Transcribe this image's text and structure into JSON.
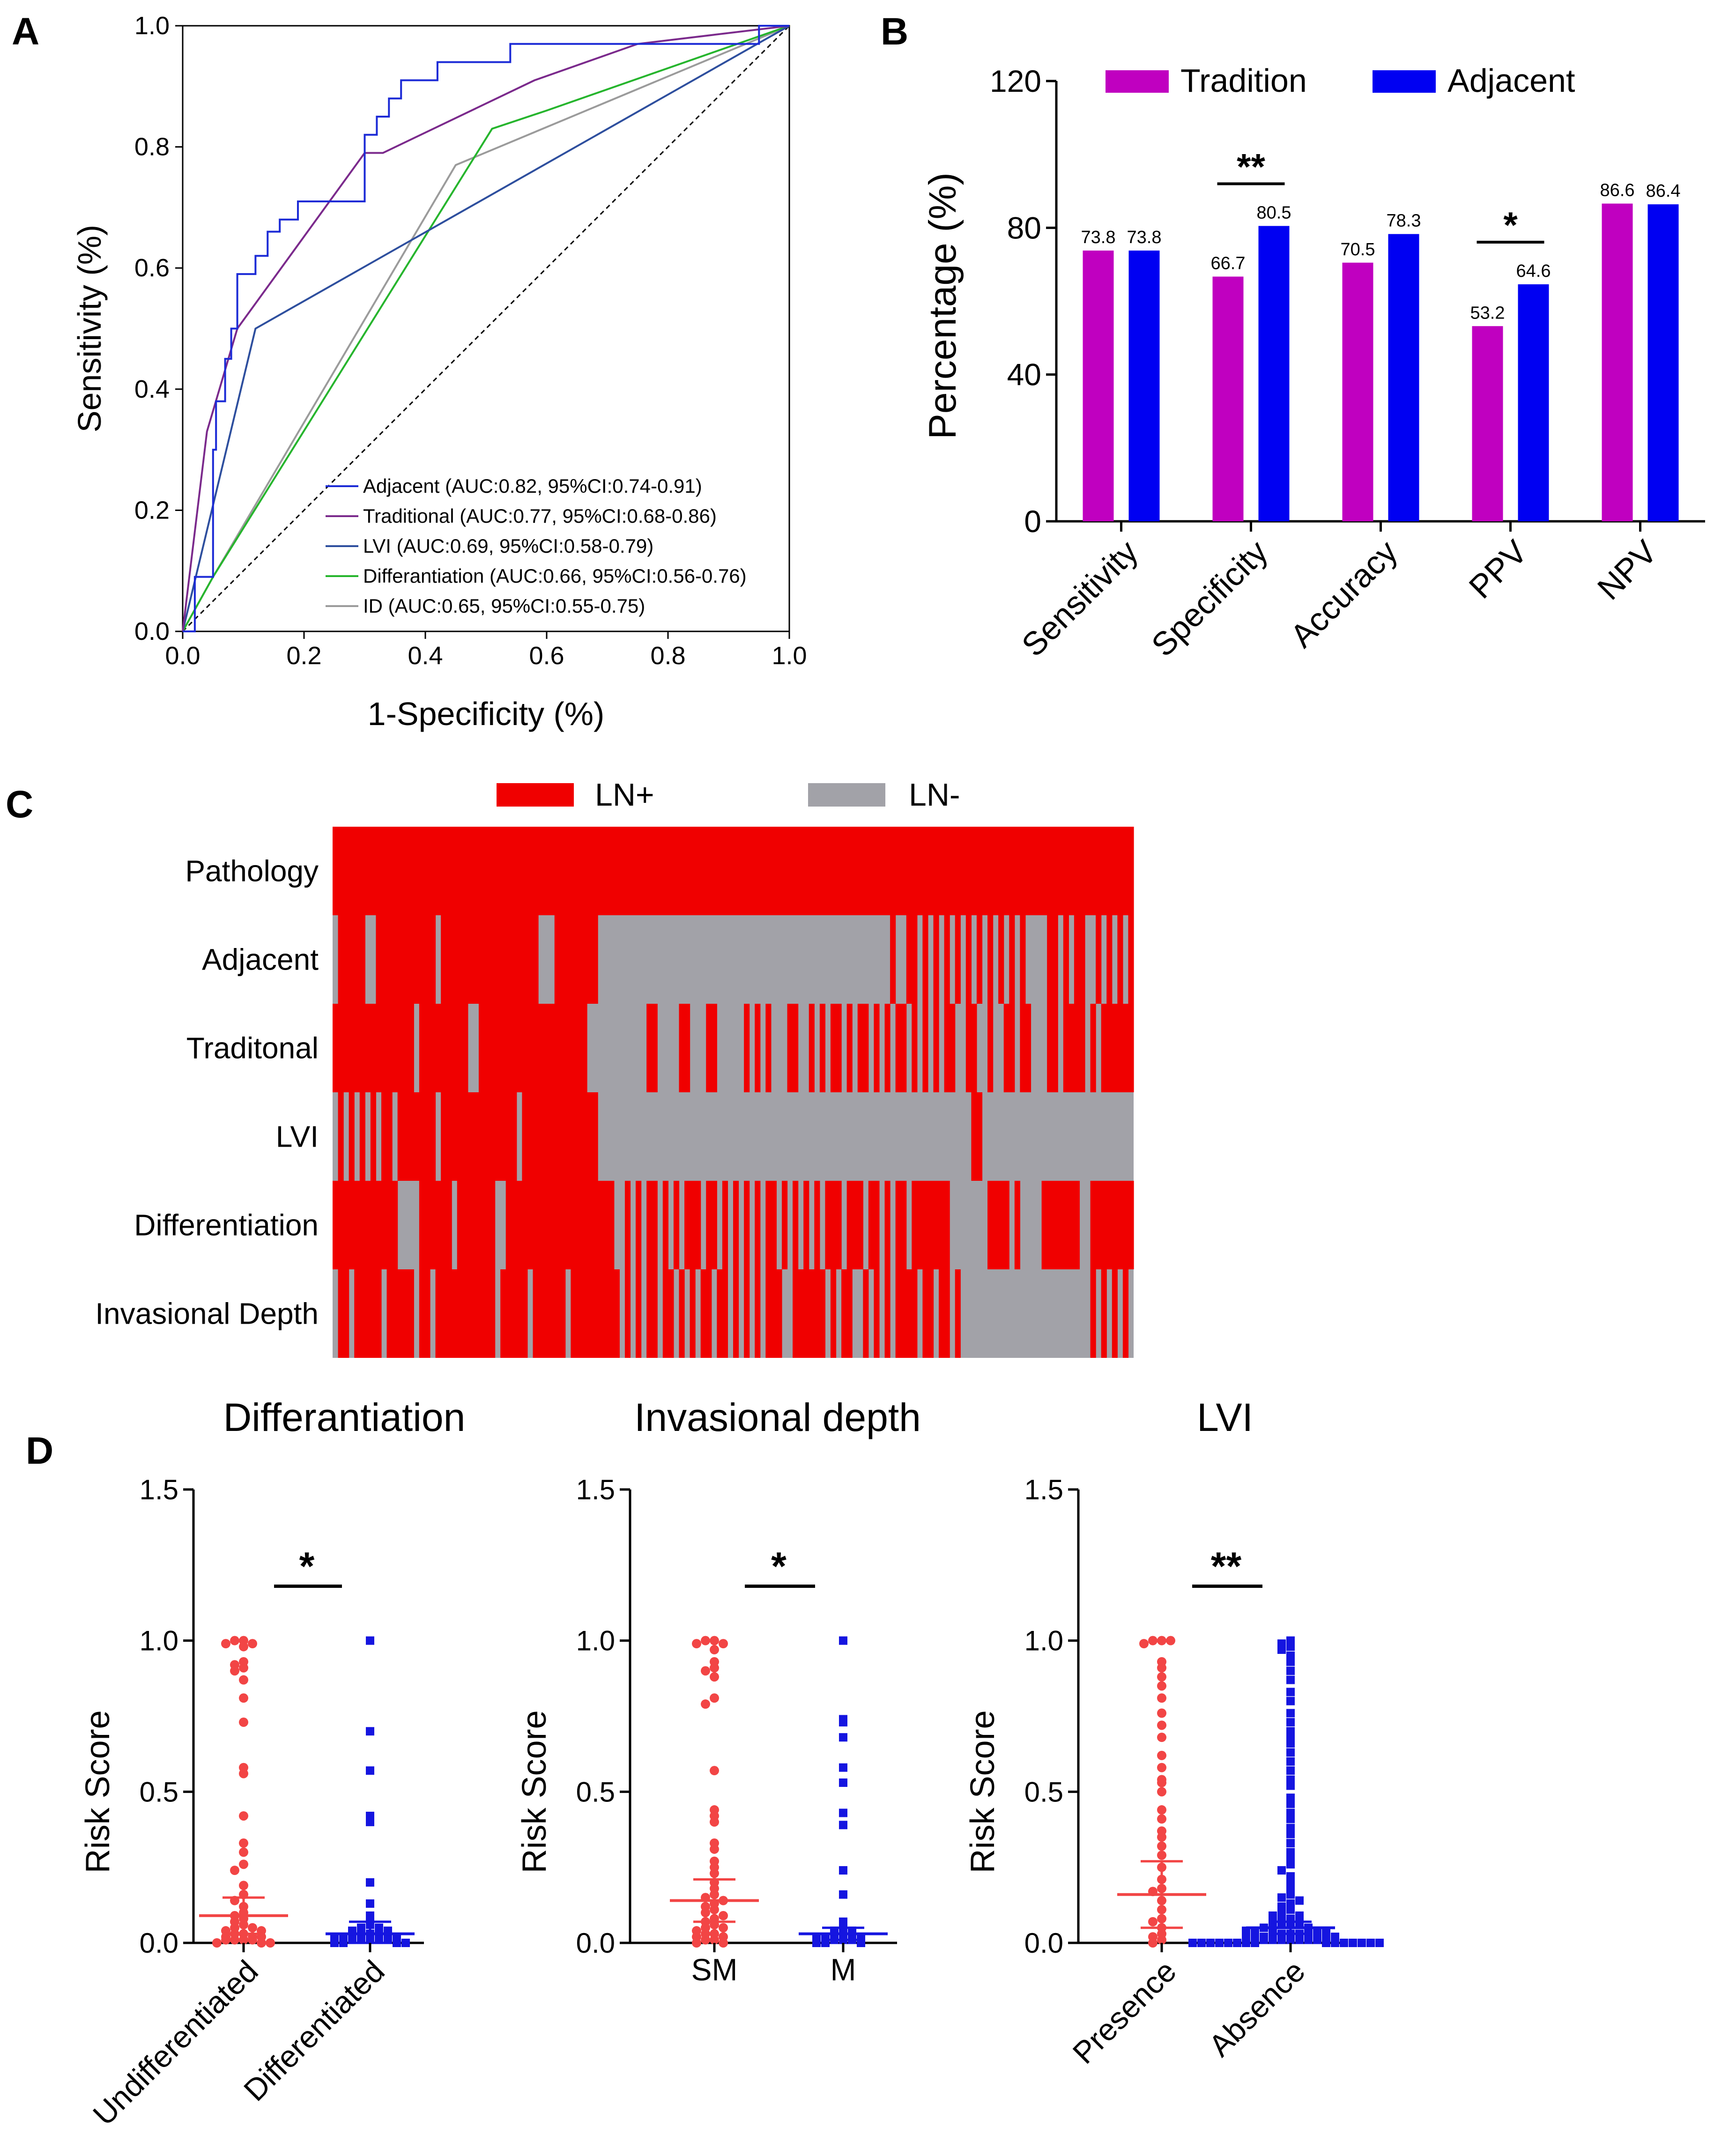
{
  "panels": {
    "a": "A",
    "b": "B",
    "c": "C",
    "d": "D"
  },
  "colors": {
    "adjacent": "#1c2bd6",
    "traditional": "#7b2a8c",
    "lvi": "#2e4f9e",
    "differentiation": "#26b52d",
    "id": "#9b9b9b",
    "tradition_bar": "#c000c0",
    "adjacent_bar": "#0000f2",
    "ln_pos": "#f00000",
    "ln_neg": "#a2a2a8",
    "red_dots": "#f24545",
    "blue_dots": "#1515e0"
  },
  "chart_data": [
    {
      "id": "roc",
      "type": "line",
      "xlabel": "1-Specificity (%)",
      "ylabel": "Sensitivity (%)",
      "xlim": [
        0,
        1
      ],
      "ylim": [
        0,
        1
      ],
      "xticks": [
        "0.0",
        "0.2",
        "0.4",
        "0.6",
        "0.8",
        "1.0"
      ],
      "yticks": [
        "0.0",
        "0.2",
        "0.4",
        "0.6",
        "0.8",
        "1.0"
      ],
      "series": [
        {
          "name": "Adjacent (AUC:0.82, 95%CI:0.74-0.91)",
          "color": "#1c2bd6",
          "step": true,
          "points": [
            [
              0,
              0
            ],
            [
              0.02,
              0
            ],
            [
              0.02,
              0.09
            ],
            [
              0.05,
              0.09
            ],
            [
              0.05,
              0.3
            ],
            [
              0.055,
              0.3
            ],
            [
              0.055,
              0.38
            ],
            [
              0.07,
              0.38
            ],
            [
              0.07,
              0.45
            ],
            [
              0.08,
              0.45
            ],
            [
              0.08,
              0.5
            ],
            [
              0.09,
              0.5
            ],
            [
              0.09,
              0.59
            ],
            [
              0.12,
              0.59
            ],
            [
              0.12,
              0.62
            ],
            [
              0.14,
              0.62
            ],
            [
              0.14,
              0.66
            ],
            [
              0.16,
              0.66
            ],
            [
              0.16,
              0.68
            ],
            [
              0.19,
              0.68
            ],
            [
              0.19,
              0.71
            ],
            [
              0.3,
              0.71
            ],
            [
              0.3,
              0.82
            ],
            [
              0.32,
              0.82
            ],
            [
              0.32,
              0.85
            ],
            [
              0.34,
              0.85
            ],
            [
              0.34,
              0.88
            ],
            [
              0.36,
              0.88
            ],
            [
              0.36,
              0.91
            ],
            [
              0.42,
              0.91
            ],
            [
              0.42,
              0.94
            ],
            [
              0.54,
              0.94
            ],
            [
              0.54,
              0.97
            ],
            [
              0.95,
              0.97
            ],
            [
              0.95,
              1
            ],
            [
              1,
              1
            ]
          ]
        },
        {
          "name": "Traditional (AUC:0.77, 95%CI:0.68-0.86)",
          "color": "#7b2a8c",
          "step": false,
          "points": [
            [
              0,
              0
            ],
            [
              0.04,
              0.33
            ],
            [
              0.09,
              0.5
            ],
            [
              0.3,
              0.79
            ],
            [
              0.33,
              0.79
            ],
            [
              0.58,
              0.91
            ],
            [
              0.75,
              0.97
            ],
            [
              1,
              1
            ]
          ]
        },
        {
          "name": "LVI (AUC:0.69, 95%CI:0.58-0.79)",
          "color": "#2e4f9e",
          "step": false,
          "points": [
            [
              0,
              0
            ],
            [
              0.12,
              0.5
            ],
            [
              1,
              1
            ]
          ]
        },
        {
          "name": "Differantiation (AUC:0.66, 95%CI:0.56-0.76)",
          "color": "#26b52d",
          "step": false,
          "points": [
            [
              0,
              0
            ],
            [
              0.05,
              0.09
            ],
            [
              0.51,
              0.83
            ],
            [
              0.6,
              0.86
            ],
            [
              1,
              1
            ]
          ]
        },
        {
          "name": "ID (AUC:0.65, 95%CI:0.55-0.75)",
          "color": "#9b9b9b",
          "step": false,
          "points": [
            [
              0,
              0
            ],
            [
              0.05,
              0.09
            ],
            [
              0.45,
              0.77
            ],
            [
              1,
              1
            ]
          ]
        }
      ]
    },
    {
      "id": "bars",
      "type": "bar",
      "ylabel": "Percentage (%)",
      "ylim": [
        0,
        120
      ],
      "yticks": [
        "0",
        "40",
        "80",
        "120"
      ],
      "categories": [
        "Sensitivity",
        "Specificity",
        "Accuracy",
        "PPV",
        "NPV"
      ],
      "series": [
        {
          "name": "Tradition",
          "values": [
            73.8,
            66.7,
            70.5,
            53.2,
            86.6
          ],
          "labels": [
            "73.8",
            "66.7",
            "70.5",
            "53.2",
            "86.6"
          ]
        },
        {
          "name": "Adjacent",
          "values": [
            73.8,
            80.5,
            78.3,
            64.6,
            86.4
          ],
          "labels": [
            "73.8",
            "80.5",
            "78.3",
            "64.6",
            "86.4"
          ]
        }
      ],
      "significance": [
        {
          "category": "Specificity",
          "mark": "**"
        },
        {
          "category": "PPV",
          "mark": "*"
        }
      ]
    },
    {
      "id": "heatmap",
      "type": "heatmap",
      "legend": [
        "LN+",
        "LN-"
      ],
      "rows": [
        {
          "label": "Pathology",
          "seq": "1111111111111111111111111111111111111111111111111111111111111111111111111111111111111111111111111111111111111111111111111111111111111111111111111111"
        },
        {
          "label": "Adjacent",
          "seq": "0111110011111111111011111111111111111100011111111000000000000000000000000000000000000000000000000000000100110101010101010101010100001101011001010101"
        },
        {
          "label": "Traditonal",
          "seq": "1111111111111110111111111001111111111111111111100000000000110000110001100000101010001100101011010110101011010101011001100100110110001101111010111111"
        },
        {
          "label": "LVI",
          "seq": "0101010101101111111011111111111111011111111111111000000000000000000000000000000000000000000000000000000000000000000000110000000000000000000000000000"
        },
        {
          "label": "Differentiation",
          "seq": "1111111111110000111111011111110011111111111111111111001010110101011101101010101011010101010111011101101011011111110000000111101000011111110011111111"
        },
        {
          "label": "Invasional Depth",
          "seq": "0110111110111110110111111111110111110111111011111111101010110110101011011010101011100111111010110010101011110110110100000000000000000000000010101010"
        }
      ]
    },
    {
      "id": "dot_differentiation",
      "type": "scatter",
      "title": "Differantiation",
      "ylabel": "Risk Score",
      "ylim": [
        0,
        1.5
      ],
      "yticks": [
        "0.0",
        "0.5",
        "1.0",
        "1.5"
      ],
      "categories": [
        "Undifferentiated",
        "Differentiated"
      ],
      "means": [
        0.09,
        0.03
      ],
      "errors": [
        0.06,
        0.04
      ],
      "significance": "*",
      "points": [
        [
          1.0,
          1.0,
          0.99,
          0.99,
          0.98,
          0.93,
          0.92,
          0.91,
          0.9,
          0.87,
          0.81,
          0.73,
          0.58,
          0.56,
          0.42,
          0.33,
          0.3,
          0.26,
          0.24,
          0.19,
          0.16,
          0.14,
          0.12,
          0.1,
          0.09,
          0.08,
          0.07,
          0.06,
          0.05,
          0.05,
          0.04,
          0.04,
          0.03,
          0.03,
          0.02,
          0.02,
          0.02,
          0.01,
          0.01,
          0.01,
          0.01,
          0.0,
          0.0,
          0.0
        ],
        [
          1.0,
          0.7,
          0.57,
          0.42,
          0.4,
          0.2,
          0.13,
          0.09,
          0.07,
          0.06,
          0.05,
          0.05,
          0.04,
          0.04,
          0.03,
          0.03,
          0.03,
          0.03,
          0.02,
          0.02,
          0.02,
          0.02,
          0.01,
          0.01,
          0.01,
          0.01,
          0.01,
          0.0,
          0.0,
          0.0,
          0.0
        ]
      ]
    },
    {
      "id": "dot_depth",
      "type": "scatter",
      "title": "Invasional depth",
      "ylabel": "Risk Score",
      "ylim": [
        0,
        1.5
      ],
      "yticks": [
        "0.0",
        "0.5",
        "1.0",
        "1.5"
      ],
      "categories": [
        "SM",
        "M"
      ],
      "means": [
        0.14,
        0.03
      ],
      "errors": [
        0.07,
        0.02
      ],
      "significance": "*",
      "points": [
        [
          1.0,
          1.0,
          0.99,
          0.99,
          0.97,
          0.93,
          0.91,
          0.9,
          0.88,
          0.81,
          0.79,
          0.57,
          0.44,
          0.42,
          0.4,
          0.33,
          0.31,
          0.27,
          0.25,
          0.23,
          0.2,
          0.18,
          0.16,
          0.15,
          0.14,
          0.13,
          0.12,
          0.11,
          0.1,
          0.09,
          0.08,
          0.07,
          0.06,
          0.05,
          0.05,
          0.04,
          0.03,
          0.03,
          0.02,
          0.02,
          0.01,
          0.01,
          0.0,
          0.0
        ],
        [
          1.0,
          0.74,
          0.73,
          0.68,
          0.58,
          0.53,
          0.43,
          0.39,
          0.24,
          0.16,
          0.07,
          0.05,
          0.04,
          0.04,
          0.03,
          0.03,
          0.03,
          0.02,
          0.02,
          0.02,
          0.01,
          0.01,
          0.01,
          0.0,
          0.0,
          0.0
        ]
      ]
    },
    {
      "id": "dot_lvi",
      "type": "scatter",
      "title": "LVI",
      "ylabel": "Risk Score",
      "ylim": [
        0,
        1.5
      ],
      "yticks": [
        "0.0",
        "0.5",
        "1.0",
        "1.5"
      ],
      "categories": [
        "Presence",
        "Absence"
      ],
      "means": [
        0.16,
        0.05
      ],
      "errors": [
        0.11,
        0.02
      ],
      "significance": "**",
      "points": [
        [
          1.0,
          1.0,
          1.0,
          0.99,
          0.93,
          0.91,
          0.88,
          0.85,
          0.81,
          0.76,
          0.72,
          0.68,
          0.62,
          0.58,
          0.54,
          0.53,
          0.5,
          0.44,
          0.41,
          0.37,
          0.35,
          0.32,
          0.29,
          0.25,
          0.21,
          0.18,
          0.17,
          0.14,
          0.11,
          0.08,
          0.07,
          0.05,
          0.03,
          0.02,
          0.01,
          0.0
        ],
        [
          1.0,
          0.99,
          0.98,
          0.97,
          0.95,
          0.93,
          0.9,
          0.87,
          0.83,
          0.8,
          0.76,
          0.73,
          0.7,
          0.68,
          0.66,
          0.63,
          0.6,
          0.57,
          0.54,
          0.52,
          0.48,
          0.46,
          0.43,
          0.41,
          0.38,
          0.36,
          0.33,
          0.3,
          0.28,
          0.26,
          0.24,
          0.22,
          0.2,
          0.18,
          0.16,
          0.15,
          0.14,
          0.13,
          0.12,
          0.11,
          0.1,
          0.09,
          0.09,
          0.08,
          0.08,
          0.07,
          0.07,
          0.06,
          0.06,
          0.06,
          0.05,
          0.05,
          0.05,
          0.04,
          0.04,
          0.04,
          0.04,
          0.03,
          0.03,
          0.03,
          0.03,
          0.03,
          0.02,
          0.02,
          0.02,
          0.02,
          0.02,
          0.02,
          0.01,
          0.01,
          0.01,
          0.01,
          0.01,
          0.01,
          0.01,
          0.0,
          0.0,
          0.0,
          0.0,
          0.0,
          0.0,
          0.0,
          0.0,
          0.0,
          0.0,
          0.0,
          0.0,
          0.0,
          0.0,
          0.0
        ]
      ]
    }
  ]
}
